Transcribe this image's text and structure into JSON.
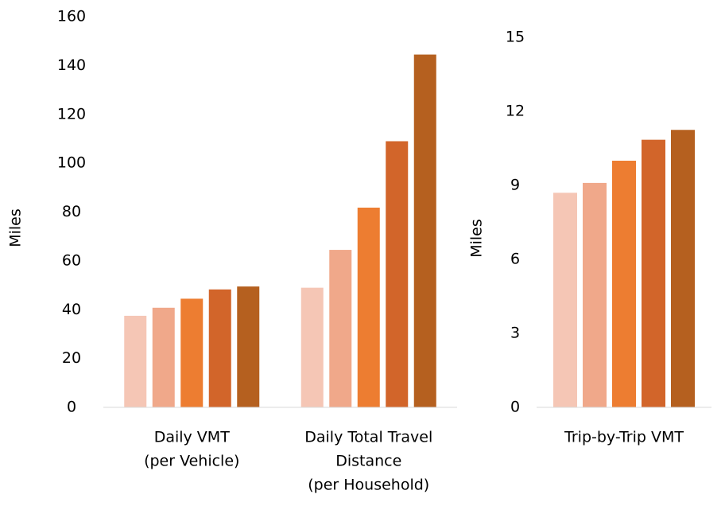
{
  "chart_data": [
    {
      "type": "bar",
      "y_label": "Miles",
      "categories": [
        [
          "Daily VMT",
          "(per Vehicle)"
        ],
        [
          "Daily Total Travel",
          "Distance",
          "(per Household)"
        ]
      ],
      "series": [
        {
          "color": "#f5c6b5",
          "values": [
            37.5,
            49
          ]
        },
        {
          "color": "#f0a88a",
          "values": [
            40.8,
            64.5
          ]
        },
        {
          "color": "#ed7d31",
          "values": [
            44.5,
            81.8
          ]
        },
        {
          "color": "#d2652a",
          "values": [
            48.3,
            109
          ]
        },
        {
          "color": "#b5601f",
          "values": [
            49.5,
            144.5
          ]
        }
      ],
      "ylim": [
        0,
        160
      ],
      "yticks": [
        0,
        20,
        40,
        60,
        80,
        100,
        120,
        140,
        160
      ],
      "grid": false
    },
    {
      "type": "bar",
      "y_label": "Miles",
      "categories": [
        [
          "Trip-by-Trip VMT"
        ]
      ],
      "series": [
        {
          "color": "#f5c6b5",
          "values": [
            8.7
          ]
        },
        {
          "color": "#f0a88a",
          "values": [
            9.1
          ]
        },
        {
          "color": "#ed7d31",
          "values": [
            10
          ]
        },
        {
          "color": "#d2652a",
          "values": [
            10.85
          ]
        },
        {
          "color": "#b5601f",
          "values": [
            11.25
          ]
        }
      ],
      "ylim": [
        0,
        15
      ],
      "yticks": [
        0,
        3,
        6,
        9,
        12,
        15
      ],
      "grid": false
    }
  ]
}
